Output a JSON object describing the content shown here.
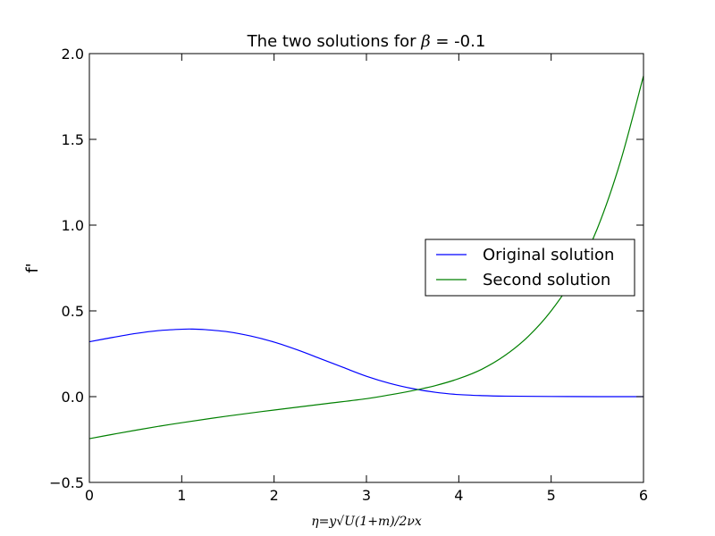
{
  "chart_data": {
    "type": "line",
    "title_prefix": "The two solutions for ",
    "title_symbol": "β",
    "title_suffix": " = -0.1",
    "xlabel": "η=y√U(1+m)/2νx",
    "ylabel": "f'",
    "xlim": [
      0,
      6
    ],
    "ylim": [
      -0.5,
      2.0
    ],
    "x_ticks": [
      0,
      1,
      2,
      3,
      4,
      5,
      6
    ],
    "x_tick_labels": [
      "0",
      "1",
      "2",
      "3",
      "4",
      "5",
      "6"
    ],
    "y_ticks": [
      -0.5,
      0.0,
      0.5,
      1.0,
      1.5,
      2.0
    ],
    "y_tick_labels": [
      "−0.5",
      "0.0",
      "0.5",
      "1.0",
      "1.5",
      "2.0"
    ],
    "grid": false,
    "legend_position": "center-right",
    "series": [
      {
        "name": "Original solution",
        "color": "#0000ff",
        "x": [
          0,
          0.25,
          0.5,
          0.75,
          1.0,
          1.1,
          1.25,
          1.5,
          1.75,
          2.0,
          2.25,
          2.5,
          2.75,
          3.0,
          3.25,
          3.5,
          3.75,
          4.0,
          4.25,
          4.5,
          5.0,
          5.5,
          6.0
        ],
        "y": [
          0.32,
          0.345,
          0.368,
          0.385,
          0.393,
          0.394,
          0.391,
          0.378,
          0.353,
          0.318,
          0.273,
          0.222,
          0.17,
          0.119,
          0.078,
          0.047,
          0.025,
          0.012,
          0.006,
          0.003,
          0.001,
          0.0,
          0.0
        ]
      },
      {
        "name": "Second solution",
        "color": "#008000",
        "x": [
          0,
          0.25,
          0.5,
          0.75,
          1.0,
          1.5,
          2.0,
          2.5,
          3.0,
          3.25,
          3.5,
          3.75,
          4.0,
          4.25,
          4.5,
          4.75,
          5.0,
          5.25,
          5.5,
          5.75,
          6.0
        ],
        "y": [
          -0.245,
          -0.22,
          -0.196,
          -0.173,
          -0.152,
          -0.113,
          -0.078,
          -0.045,
          -0.012,
          0.01,
          0.035,
          0.065,
          0.105,
          0.16,
          0.24,
          0.35,
          0.5,
          0.7,
          0.98,
          1.37,
          1.87
        ]
      }
    ]
  }
}
